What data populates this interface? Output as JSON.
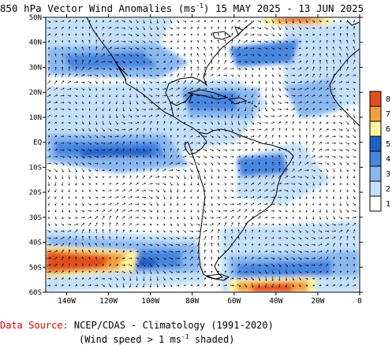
{
  "title": {
    "prefix": "850 hPa Vector Wind Anomalies (ms",
    "exp": "-1",
    "suffix": ") 15 MAY 2025 - 13 JUN 2025"
  },
  "axes": {
    "lat_labels": [
      "50N",
      "40N",
      "30N",
      "20N",
      "10N",
      "EQ",
      "10S",
      "20S",
      "30S",
      "40S",
      "50S",
      "60S"
    ],
    "lat_values": [
      50,
      40,
      30,
      20,
      10,
      0,
      -10,
      -20,
      -30,
      -40,
      -50,
      -60
    ],
    "lon_labels": [
      "140W",
      "120W",
      "100W",
      "80W",
      "60W",
      "40W",
      "20W",
      "0"
    ],
    "lon_values": [
      -140,
      -120,
      -100,
      -80,
      -60,
      -40,
      -20,
      0
    ],
    "lon_range": [
      -150,
      0
    ],
    "lat_range": [
      -60,
      50
    ]
  },
  "colorbar": {
    "levels": [
      "8",
      "7",
      "6",
      "5",
      "4",
      "3",
      "2",
      "1"
    ],
    "colors": [
      "#e0501e",
      "#f0a040",
      "#fff3a0",
      "#1f5fc8",
      "#4a86e0",
      "#8ab8f0",
      "#c4e0fa",
      "#ffffff"
    ]
  },
  "source": {
    "label": "Data Source:",
    "text": " NCEP/CDAS - Climatology (1991-2020)"
  },
  "note": {
    "prefix": "(Wind speed > 1 ms",
    "exp": "-1",
    "suffix": " shaded)"
  }
}
